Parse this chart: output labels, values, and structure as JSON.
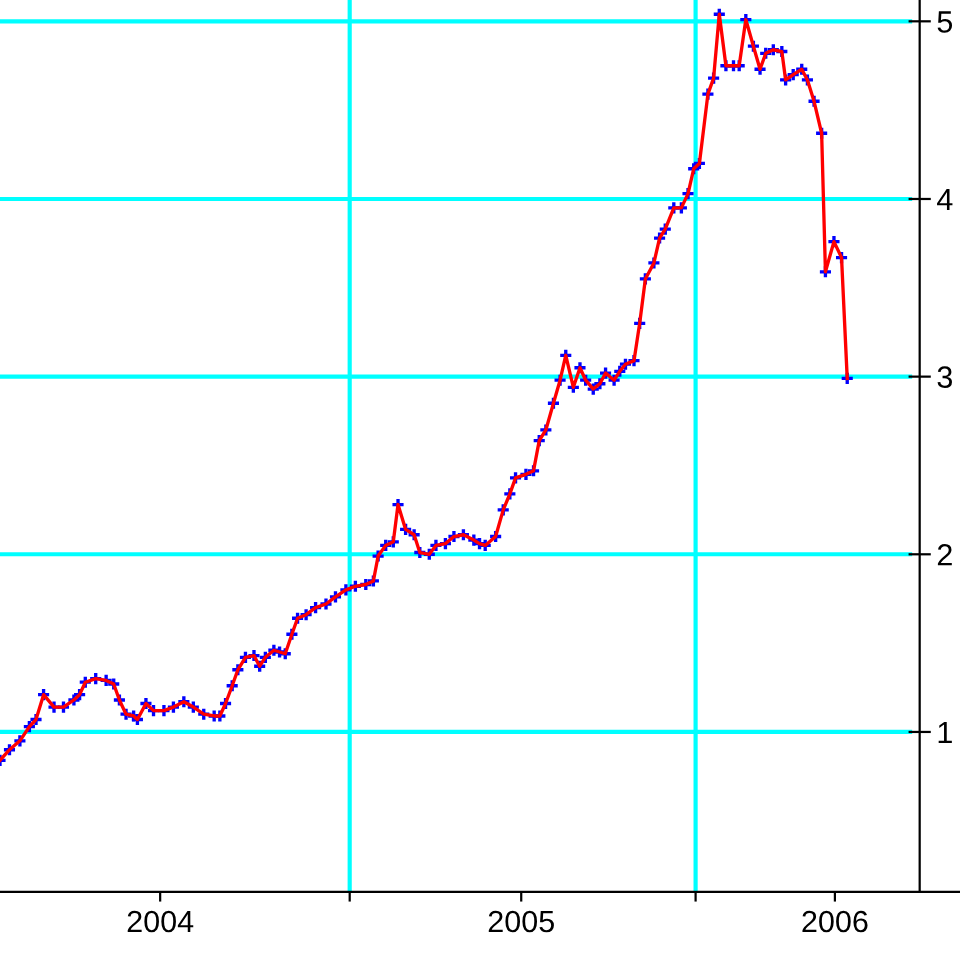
{
  "chart_data": {
    "type": "line",
    "marker": "cross",
    "line_style": "solid",
    "grid": "y",
    "x": [
      "2003-12-29",
      "2004-01-08",
      "2004-01-19",
      "2004-01-29",
      "2004-02-05",
      "2004-02-13",
      "2004-02-24",
      "2004-03-05",
      "2004-03-16",
      "2004-03-22",
      "2004-03-28",
      "2004-04-08",
      "2004-04-19",
      "2004-04-27",
      "2004-05-03",
      "2004-05-10",
      "2004-05-18",
      "2004-05-22",
      "2004-05-31",
      "2004-06-08",
      "2004-06-19",
      "2004-06-29",
      "2004-07-10",
      "2004-07-20",
      "2004-07-31",
      "2004-08-11",
      "2004-08-17",
      "2004-08-23",
      "2004-08-30",
      "2004-09-05",
      "2004-09-13",
      "2004-09-22",
      "2004-09-28",
      "2004-10-04",
      "2004-10-13",
      "2004-10-19",
      "2004-10-25",
      "2004-11-01",
      "2004-11-07",
      "2004-11-16",
      "2004-11-26",
      "2004-12-07",
      "2004-12-17",
      "2004-12-28",
      "2005-01-07",
      "2005-01-18",
      "2005-01-26",
      "2005-01-31",
      "2005-02-08",
      "2005-02-16",
      "2005-02-21",
      "2005-03-01",
      "2005-03-10",
      "2005-03-16",
      "2005-03-26",
      "2005-04-02",
      "2005-04-12",
      "2005-04-21",
      "2005-05-01",
      "2005-05-12",
      "2005-05-18",
      "2005-05-24",
      "2005-06-04",
      "2005-06-12",
      "2005-06-19",
      "2005-06-25",
      "2005-07-06",
      "2005-07-14",
      "2005-07-20",
      "2005-07-27",
      "2005-08-04",
      "2005-08-11",
      "2005-08-17",
      "2005-08-25",
      "2005-09-01",
      "2005-09-07",
      "2005-09-15",
      "2005-09-22",
      "2005-09-28",
      "2005-10-07",
      "2005-10-13",
      "2005-10-19",
      "2005-10-28",
      "2005-11-03",
      "2005-11-09",
      "2005-11-18",
      "2005-11-24",
      "2005-11-30",
      "2005-12-09",
      "2005-12-17",
      "2005-12-24",
      "2005-12-30",
      "2006-01-05",
      "2006-01-14",
      "2006-01-20",
      "2006-01-26",
      "2006-02-02",
      "2006-02-10",
      "2006-02-16",
      "2006-02-23",
      "2006-03-03",
      "2006-03-10",
      "2006-03-16",
      "2006-03-24",
      "2006-04-02",
      "2006-04-06",
      "2006-04-14",
      "2006-04-23",
      "2006-04-29",
      "2006-05-06",
      "2006-05-14",
      "2006-05-18",
      "2006-05-27",
      "2006-06-04",
      "2006-06-10"
    ],
    "series": [
      {
        "color": "#ff0000",
        "values": [
          0.84,
          0.9,
          0.95,
          1.03,
          1.07,
          1.21,
          1.14,
          1.14,
          1.18,
          1.21,
          1.28,
          1.3,
          1.29,
          1.27,
          1.18,
          1.1,
          1.09,
          1.07,
          1.16,
          1.12,
          1.12,
          1.14,
          1.17,
          1.14,
          1.1,
          1.09,
          1.09,
          1.16,
          1.26,
          1.35,
          1.42,
          1.43,
          1.37,
          1.42,
          1.46,
          1.45,
          1.44,
          1.55,
          1.64,
          1.66,
          1.7,
          1.72,
          1.76,
          1.8,
          1.82,
          1.83,
          1.85,
          1.99,
          2.05,
          2.07,
          2.28,
          2.14,
          2.11,
          2.01,
          2.0,
          2.05,
          2.06,
          2.1,
          2.11,
          2.08,
          2.06,
          2.05,
          2.1,
          2.25,
          2.34,
          2.43,
          2.45,
          2.47,
          2.64,
          2.7,
          2.85,
          2.98,
          3.12,
          2.94,
          3.05,
          2.98,
          2.93,
          2.96,
          3.02,
          2.98,
          3.03,
          3.07,
          3.09,
          3.3,
          3.55,
          3.64,
          3.78,
          3.83,
          3.95,
          3.95,
          4.03,
          4.17,
          4.2,
          4.59,
          4.68,
          5.04,
          4.75,
          4.75,
          4.75,
          5.01,
          4.86,
          4.73,
          4.82,
          4.84,
          4.83,
          4.67,
          4.7,
          4.73,
          4.67,
          4.55,
          4.37,
          3.59,
          3.76,
          3.67,
          2.99
        ]
      }
    ],
    "xlim": [
      "2003-12-29",
      "2006-10-07"
    ],
    "xticks": [
      {
        "value": "2004-06-15",
        "label": "2004"
      },
      {
        "value": "2005-01-01",
        "label": null
      },
      {
        "value": "2005-07-01",
        "label": "2005"
      },
      {
        "value": "2006-01-01",
        "label": null
      },
      {
        "value": "2006-05-28",
        "label": "2006"
      }
    ],
    "ylim": [
      0.1,
      5.12
    ],
    "yticks": [
      1,
      2,
      3,
      4,
      5
    ],
    "ref_lines": [
      {
        "axis": "x",
        "value": "2005-01-01",
        "color": "#00ffff"
      },
      {
        "axis": "x",
        "value": "2006-01-01",
        "color": "#00ffff"
      }
    ]
  }
}
